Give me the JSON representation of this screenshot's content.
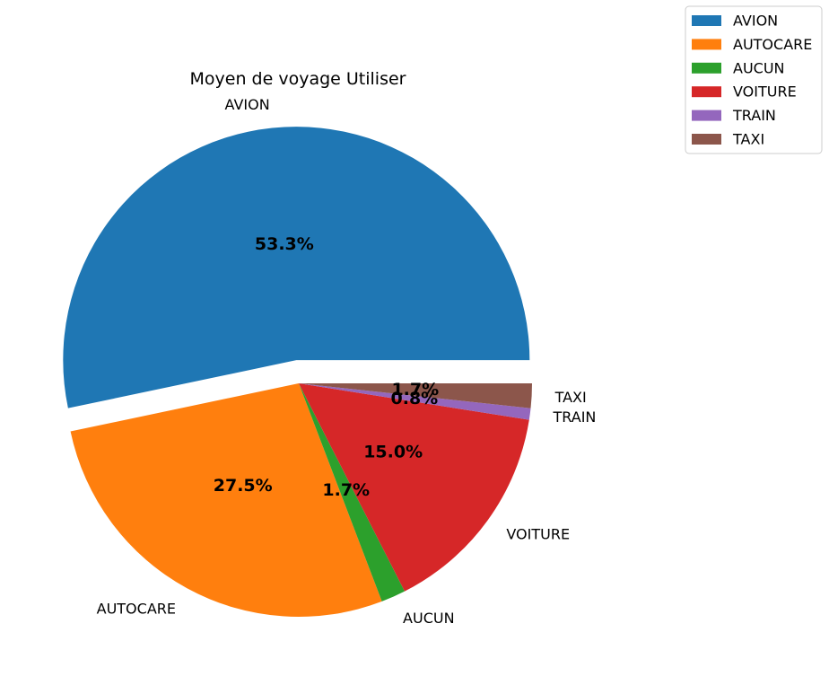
{
  "chart_data": {
    "type": "pie",
    "title": "Moyen de voyage Utiliser",
    "labels": [
      "AVION",
      "AUTOCARE",
      "AUCUN",
      "VOITURE",
      "TRAIN",
      "TAXI"
    ],
    "values": [
      53.3,
      27.5,
      1.7,
      15.0,
      0.8,
      1.7
    ],
    "value_labels": [
      "53.3%",
      "27.5%",
      "1.7%",
      "15.0%",
      "0.8%",
      "1.7%"
    ],
    "colors": [
      "#1f77b4",
      "#ff7f0e",
      "#2ca02c",
      "#d62728",
      "#9467bd",
      "#8c564b"
    ],
    "exploded": "AVION",
    "legend": {
      "placement": "top-right",
      "entries": [
        "AVION",
        "AUTOCARE",
        "AUCUN",
        "VOITURE",
        "TRAIN",
        "TAXI"
      ]
    }
  }
}
